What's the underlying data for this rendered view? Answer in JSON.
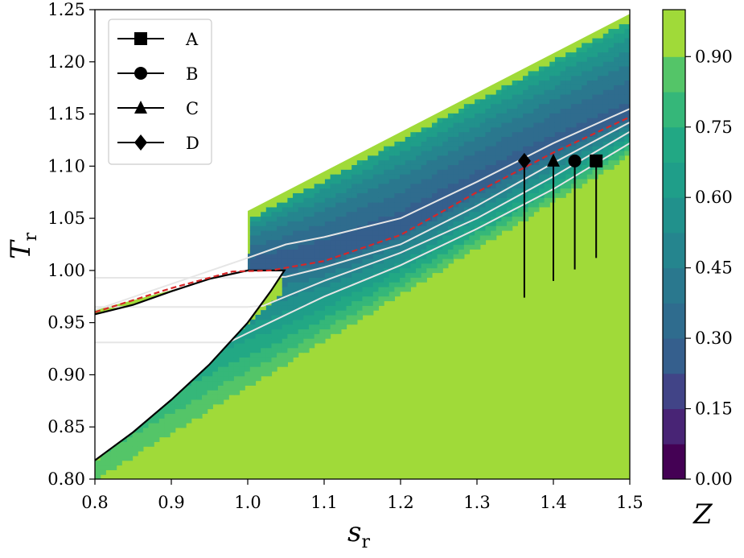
{
  "chart_data": {
    "type": "contourf",
    "xlabel": {
      "main": "s",
      "sub": "r"
    },
    "ylabel": {
      "main": "T",
      "sub": "r"
    },
    "xlim": [
      0.8,
      1.5
    ],
    "ylim": [
      0.8,
      1.25
    ],
    "xticks": [
      "0.8",
      "0.9",
      "1.0",
      "1.1",
      "1.2",
      "1.3",
      "1.4",
      "1.5"
    ],
    "yticks": [
      "0.80",
      "0.85",
      "0.90",
      "0.95",
      "1.00",
      "1.05",
      "1.10",
      "1.15",
      "1.20",
      "1.25"
    ],
    "grid": false,
    "legend_position": "top-left",
    "colorbar": {
      "label": "Z",
      "range": [
        0.0,
        1.0
      ],
      "ticks": [
        "0.00",
        "0.15",
        "0.30",
        "0.45",
        "0.60",
        "0.75",
        "0.90"
      ],
      "levels": [
        {
          "from": 0.0,
          "to": 0.075,
          "color": "#440154"
        },
        {
          "from": 0.075,
          "to": 0.15,
          "color": "#482475"
        },
        {
          "from": 0.15,
          "to": 0.225,
          "color": "#414487"
        },
        {
          "from": 0.225,
          "to": 0.3,
          "color": "#355f8d"
        },
        {
          "from": 0.3,
          "to": 0.375,
          "color": "#2f6c8e"
        },
        {
          "from": 0.375,
          "to": 0.45,
          "color": "#2a788e"
        },
        {
          "from": 0.45,
          "to": 0.525,
          "color": "#25858e"
        },
        {
          "from": 0.525,
          "to": 0.6,
          "color": "#21918c"
        },
        {
          "from": 0.6,
          "to": 0.675,
          "color": "#1f9e89"
        },
        {
          "from": 0.675,
          "to": 0.75,
          "color": "#22a884"
        },
        {
          "from": 0.75,
          "to": 0.825,
          "color": "#35b779"
        },
        {
          "from": 0.825,
          "to": 0.9,
          "color": "#54c568"
        },
        {
          "from": 0.9,
          "to": 1.0,
          "color": "#a0da39"
        }
      ]
    },
    "two_phase_dome": [
      [
        0.8,
        0.818
      ],
      [
        0.85,
        0.845
      ],
      [
        0.9,
        0.876
      ],
      [
        0.95,
        0.91
      ],
      [
        1.0,
        0.95
      ],
      [
        1.03,
        0.98
      ],
      [
        1.048,
        1.0
      ],
      [
        1.03,
        1.0
      ],
      [
        1.0,
        1.0
      ],
      [
        0.95,
        0.992
      ],
      [
        0.9,
        0.98
      ],
      [
        0.85,
        0.967
      ],
      [
        0.8,
        0.958
      ]
    ],
    "widom_line": [
      [
        0.8,
        0.96
      ],
      [
        0.9,
        0.983
      ],
      [
        0.98,
        0.999
      ],
      [
        1.03,
        1.0
      ],
      [
        1.1,
        1.009
      ],
      [
        1.2,
        1.034
      ],
      [
        1.3,
        1.075
      ],
      [
        1.4,
        1.113
      ],
      [
        1.5,
        1.147
      ]
    ],
    "isobars": [
      [
        [
          0.8,
          0.962
        ],
        [
          0.9,
          0.987
        ],
        [
          1.0,
          1.012
        ],
        [
          1.05,
          1.025
        ],
        [
          1.1,
          1.032
        ],
        [
          1.2,
          1.05
        ],
        [
          1.3,
          1.085
        ],
        [
          1.4,
          1.122
        ],
        [
          1.5,
          1.155
        ]
      ],
      [
        [
          0.8,
          0.993
        ],
        [
          1.0,
          0.993
        ],
        [
          1.05,
          0.994
        ],
        [
          1.1,
          1.003
        ],
        [
          1.2,
          1.025
        ],
        [
          1.3,
          1.062
        ],
        [
          1.4,
          1.103
        ],
        [
          1.5,
          1.142
        ]
      ],
      [
        [
          0.8,
          0.965
        ],
        [
          1.0,
          0.965
        ],
        [
          1.02,
          0.966
        ],
        [
          1.1,
          0.99
        ],
        [
          1.2,
          1.017
        ],
        [
          1.3,
          1.05
        ],
        [
          1.4,
          1.09
        ],
        [
          1.5,
          1.133
        ]
      ],
      [
        [
          0.8,
          0.931
        ],
        [
          0.975,
          0.931
        ],
        [
          1.0,
          0.94
        ],
        [
          1.1,
          0.975
        ],
        [
          1.2,
          1.005
        ],
        [
          1.3,
          1.04
        ],
        [
          1.4,
          1.078
        ],
        [
          1.5,
          1.122
        ]
      ]
    ],
    "series": [
      {
        "name": "A",
        "marker": "square",
        "x": 1.456,
        "y_start": 1.012,
        "y_end": 1.105
      },
      {
        "name": "B",
        "marker": "circle",
        "x": 1.428,
        "y_start": 1.001,
        "y_end": 1.105
      },
      {
        "name": "C",
        "marker": "triangle",
        "x": 1.4,
        "y_start": 0.99,
        "y_end": 1.105
      },
      {
        "name": "D",
        "marker": "diamond",
        "x": 1.362,
        "y_start": 0.974,
        "y_end": 1.105
      }
    ],
    "colors": {
      "widom_line": "#d62728",
      "isobar": "#e6e6e6",
      "dome": "#000000",
      "high_z": "#a0da39"
    }
  }
}
